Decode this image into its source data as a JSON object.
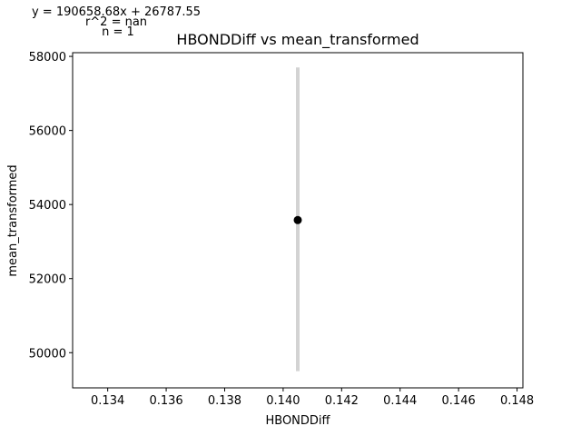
{
  "chart_data": {
    "type": "scatter",
    "title": "HBONDDiff vs mean_transformed",
    "xlabel": "HBONDDiff",
    "ylabel": "mean_transformed",
    "annotation_lines": [
      "y = 190658.68x + 26787.55",
      "r^2 = nan",
      "n = 1"
    ],
    "xlim": [
      0.1328,
      0.1482
    ],
    "ylim": [
      49050,
      58100
    ],
    "xticks": [
      0.134,
      0.136,
      0.138,
      0.14,
      0.142,
      0.144,
      0.146,
      0.148
    ],
    "xtick_labels": [
      "0.134",
      "0.136",
      "0.138",
      "0.140",
      "0.142",
      "0.144",
      "0.146",
      "0.148"
    ],
    "yticks": [
      50000,
      52000,
      54000,
      56000,
      58000
    ],
    "ytick_labels": [
      "50000",
      "52000",
      "54000",
      "56000",
      "58000"
    ],
    "points": [
      {
        "x": 0.1405,
        "y": 53580
      }
    ],
    "error_bars": [
      {
        "x": 0.1405,
        "low": 49500,
        "high": 57700
      }
    ],
    "grid": false,
    "legend": "none",
    "colors": {
      "point": "#000000",
      "error_bar": "#d3d3d3"
    }
  }
}
